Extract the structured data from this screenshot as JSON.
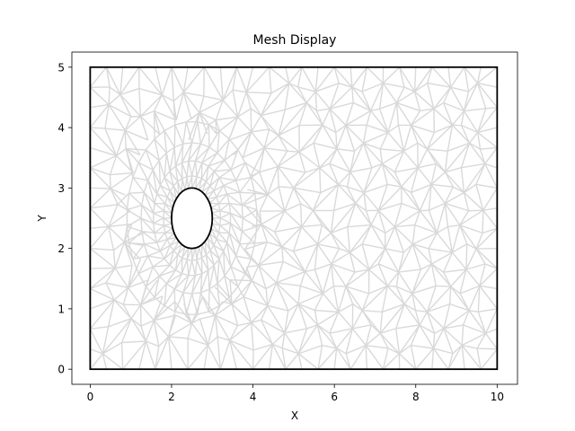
{
  "chart_data": {
    "type": "mesh",
    "title": "Mesh Display",
    "xlabel": "X",
    "ylabel": "Y",
    "xlim": [
      -0.45,
      10.5
    ],
    "ylim": [
      -0.25,
      5.25
    ],
    "xticks": [
      0,
      2,
      4,
      6,
      8,
      10
    ],
    "yticks": [
      0,
      1,
      2,
      3,
      4,
      5
    ],
    "domain": {
      "x": [
        0,
        10
      ],
      "y": [
        0,
        5
      ]
    },
    "hole": {
      "shape": "ellipse",
      "cx": 2.5,
      "cy": 2.5,
      "rx": 0.5,
      "ry": 0.5
    },
    "grid": false,
    "colors": {
      "mesh": "#d9d9d9",
      "boundary": "#000000",
      "axes": "#000000"
    }
  }
}
